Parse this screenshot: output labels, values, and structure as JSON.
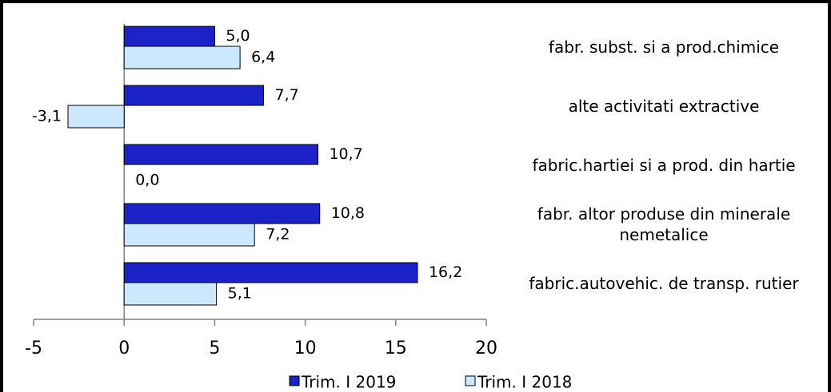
{
  "chart_data": {
    "type": "hbar",
    "categories": [
      "fabr. subst. si a prod.chimice",
      "alte activitati extractive",
      "fabric.hartiei si a prod. din hartie",
      "fabr. altor produse din minerale\nnemetalice",
      "fabric.autovehic. de transp. rutier"
    ],
    "series": [
      {
        "name": "Trim. I 2019",
        "color": "#1a22c8",
        "values": [
          5.0,
          7.7,
          10.7,
          10.8,
          16.2
        ],
        "value_labels": [
          "5,0",
          "7,7",
          "10,7",
          "10,8",
          "16,2"
        ]
      },
      {
        "name": "Trim. I 2018",
        "color": "#cce8ff",
        "values": [
          6.4,
          -3.1,
          0.0,
          7.2,
          5.1
        ],
        "value_labels": [
          "6,4",
          "-3,1",
          "0,0",
          "7,2",
          "5,1"
        ]
      }
    ],
    "xlim": [
      -5,
      20
    ],
    "xticks": [
      -5,
      0,
      5,
      10,
      15,
      20
    ],
    "legend": "bottom"
  }
}
